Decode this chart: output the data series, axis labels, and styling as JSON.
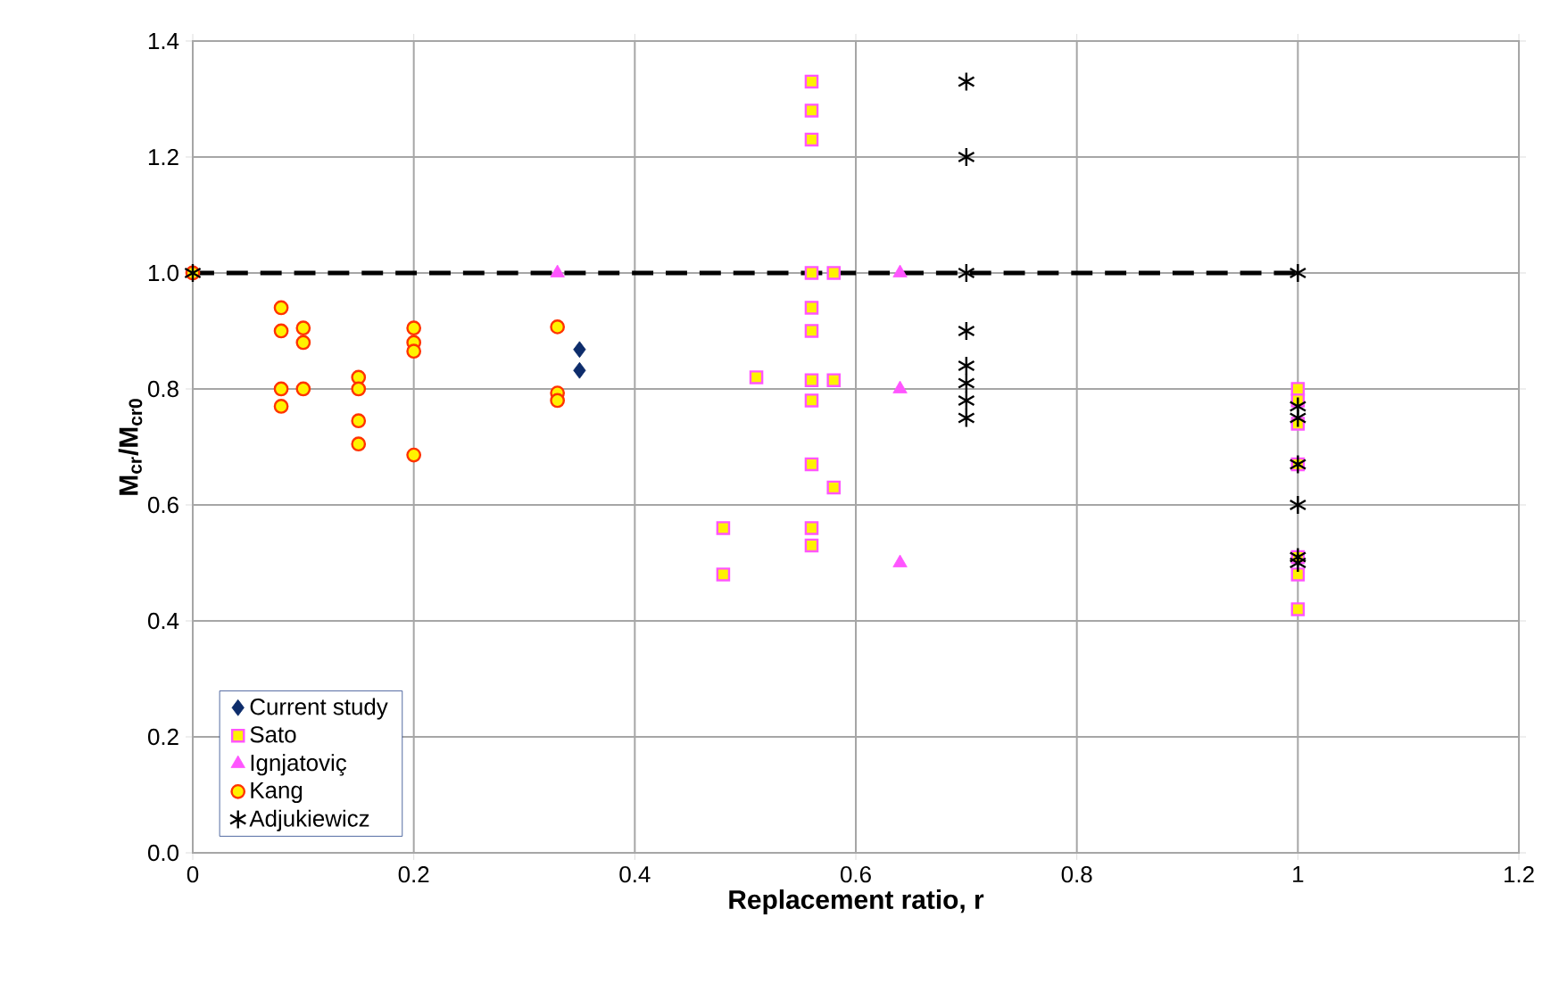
{
  "chart_data": {
    "type": "scatter",
    "xlabel": "Replacement ratio, r",
    "ylabel": "M$_{cr}$/M$_{cr0}$",
    "xlim": [
      0,
      1.2
    ],
    "xticks": [
      0,
      0.2,
      0.4,
      0.6,
      0.8,
      1,
      1.2
    ],
    "ylim": [
      0,
      1.4
    ],
    "yticks": [
      {
        "value": 0,
        "label": "0.0"
      },
      {
        "value": 0.2,
        "label": "0.2"
      },
      {
        "value": 0.4,
        "label": "0.4"
      },
      {
        "value": 0.6,
        "label": "0.6"
      },
      {
        "value": 0.8,
        "label": "0.8"
      },
      {
        "value": 1,
        "label": "1.0"
      },
      {
        "value": 1.2,
        "label": "1.2"
      },
      {
        "value": 1.4,
        "label": "1.4"
      }
    ],
    "grid": true,
    "legend": "bottom left",
    "series": [
      {
        "type": "line",
        "color": "#000000",
        "line_style": "dashed",
        "marker": "none",
        "x": [
          0,
          1
        ],
        "values": [
          1,
          1
        ]
      },
      {
        "name": "Current study",
        "color": "#0d2c6b",
        "marker": "diamond",
        "x": [
          0.35,
          0.35
        ],
        "values": [
          0.868,
          0.832
        ]
      },
      {
        "name": "Sato",
        "color": "#ff55ff",
        "marker": "square",
        "x": [
          0.56,
          0.56,
          0.56,
          0.56,
          0.56,
          0.56,
          0.56,
          0.56,
          0.56,
          0.56,
          0.56,
          0.58,
          0.58,
          0.58,
          0.51,
          0.48,
          0.48,
          1,
          1,
          1,
          1,
          1,
          1,
          1
        ],
        "values": [
          1.33,
          1.28,
          1.23,
          1.0,
          0.94,
          0.9,
          0.815,
          0.78,
          0.67,
          0.56,
          0.53,
          1.0,
          0.815,
          0.63,
          0.82,
          0.56,
          0.48,
          0.8,
          0.78,
          0.74,
          0.67,
          0.51,
          0.48,
          0.42
        ]
      },
      {
        "name": "Ignjatoviç",
        "color": "#ff55ff",
        "marker": "triangle",
        "x": [
          0.33,
          0.64,
          0.64,
          0.64
        ],
        "values": [
          1.0,
          1.0,
          0.8,
          0.5
        ]
      },
      {
        "name": "Kang",
        "color": "#ff3300",
        "marker": "circle",
        "x": [
          0,
          0.08,
          0.08,
          0.08,
          0.08,
          0.1,
          0.1,
          0.1,
          0.15,
          0.15,
          0.15,
          0.15,
          0.2,
          0.2,
          0.2,
          0.2,
          0.33,
          0.33,
          0.33
        ],
        "values": [
          1.0,
          0.94,
          0.9,
          0.8,
          0.77,
          0.905,
          0.88,
          0.8,
          0.82,
          0.8,
          0.745,
          0.705,
          0.905,
          0.88,
          0.865,
          0.686,
          0.907,
          0.793,
          0.78
        ]
      },
      {
        "name": "Adjukiewicz",
        "color": "#000000",
        "marker": "cross",
        "x": [
          0,
          0.7,
          0.7,
          0.7,
          0.7,
          0.7,
          0.7,
          0.7,
          0.7,
          1,
          1,
          1,
          1,
          1,
          1,
          1
        ],
        "values": [
          1.0,
          1.33,
          1.2,
          1.0,
          0.9,
          0.84,
          0.81,
          0.78,
          0.75,
          1.0,
          0.77,
          0.75,
          0.67,
          0.6,
          0.51,
          0.5
        ]
      }
    ]
  }
}
